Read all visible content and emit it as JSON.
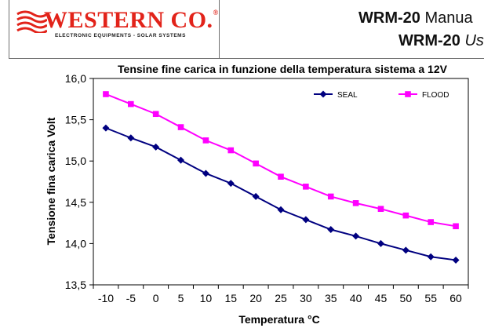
{
  "header": {
    "logo_text": "WESTERN CO.",
    "logo_reg": "®",
    "logo_subtitle": "ELECTRONIC EQUIPMENTS - SOLAR SYSTEMS",
    "model_1": "WRM-20",
    "title_1_rest": "Manua",
    "model_2": "WRM-20",
    "title_2_rest": "Us"
  },
  "colors": {
    "seal": "#000080",
    "flood": "#ff00ff",
    "logo_red": "#e2231a"
  },
  "chart_data": {
    "type": "line",
    "title": "Tensine fine carica in funzione della temperatura sistema a 12V",
    "xlabel": "Temperatura °C",
    "ylabel": "Tensione fina carica Volt",
    "x": [
      -10,
      -5,
      0,
      5,
      10,
      15,
      20,
      25,
      30,
      35,
      40,
      45,
      50,
      55,
      60
    ],
    "ylim": [
      13.5,
      16.0
    ],
    "yticks": [
      "13,5",
      "14,0",
      "14,5",
      "15,0",
      "15,5",
      "16,0"
    ],
    "grid": false,
    "legend_position": "top-right",
    "series": [
      {
        "name": "SEAL",
        "marker": "diamond",
        "values": [
          15.4,
          15.28,
          15.17,
          15.01,
          14.85,
          14.73,
          14.57,
          14.41,
          14.29,
          14.17,
          14.09,
          14.0,
          13.92,
          13.84,
          13.8
        ]
      },
      {
        "name": "FLOOD",
        "marker": "square",
        "values": [
          15.81,
          15.69,
          15.57,
          15.41,
          15.25,
          15.13,
          14.97,
          14.81,
          14.69,
          14.57,
          14.49,
          14.42,
          14.34,
          14.26,
          14.21
        ]
      }
    ]
  }
}
